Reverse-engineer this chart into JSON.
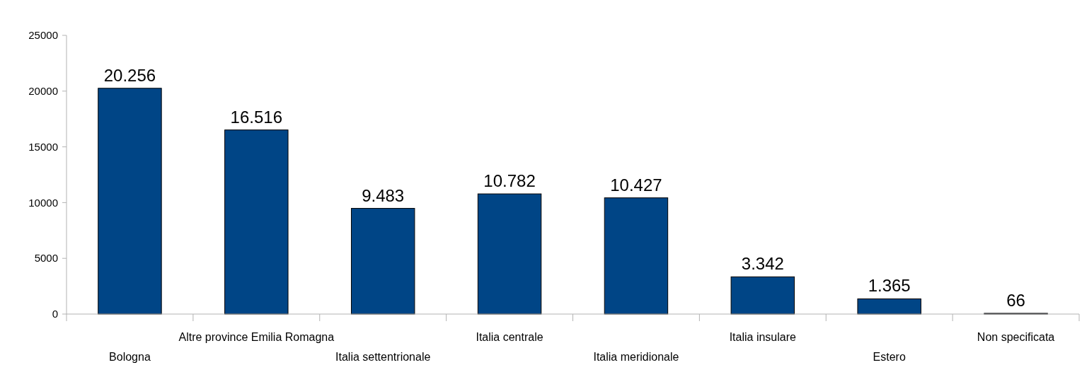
{
  "chart_data": {
    "type": "bar",
    "categories": [
      "Bologna",
      "Altre province Emilia Romagna",
      "Italia settentrionale",
      "Italia centrale",
      "Italia meridionale",
      "Italia insulare",
      "Estero",
      "Non specificata"
    ],
    "values": [
      20256,
      16516,
      9483,
      10782,
      10427,
      3342,
      1365,
      66
    ],
    "value_labels": [
      "20.256",
      "16.516",
      "9.483",
      "10.782",
      "10.427",
      "3.342",
      "1.365",
      "66"
    ],
    "color": "#004586",
    "ylim": [
      0,
      25000
    ],
    "yticks": [
      0,
      5000,
      10000,
      15000,
      20000,
      25000
    ],
    "grid": false
  }
}
